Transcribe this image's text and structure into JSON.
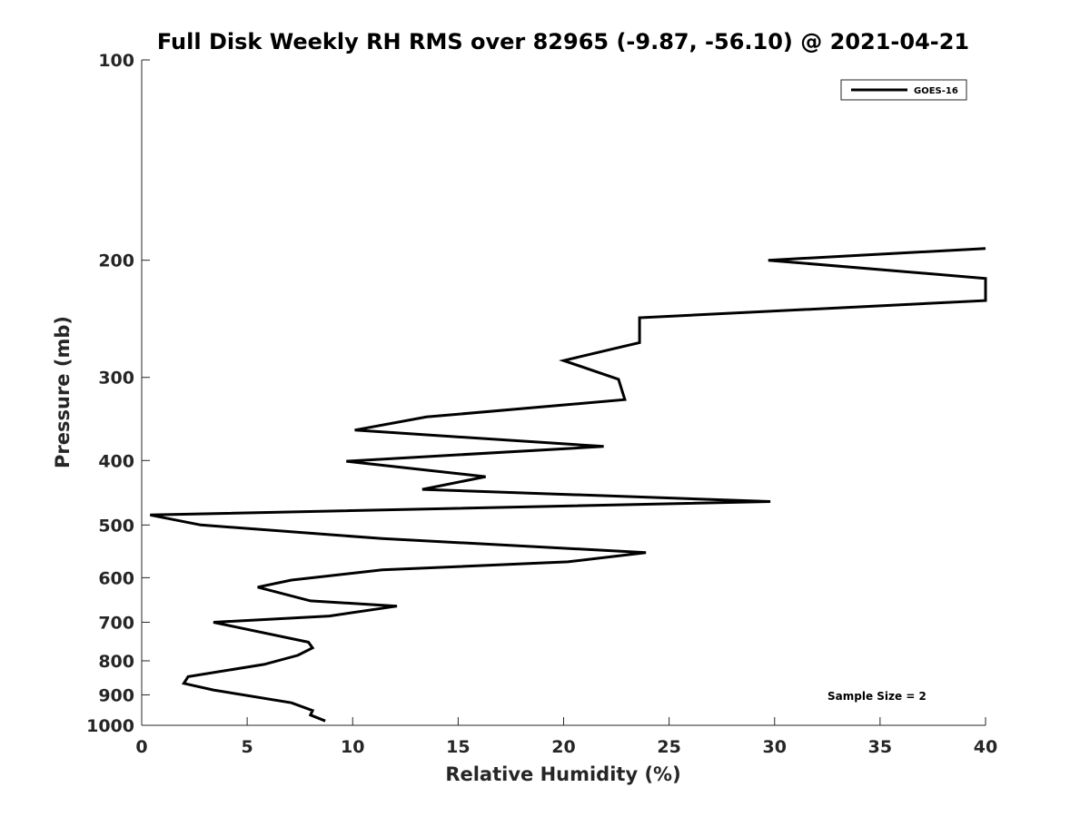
{
  "chart_data": {
    "type": "line",
    "title": "Full Disk Weekly RH RMS over 82965 (-9.87, -56.10) @ 2021-04-21",
    "xlabel": "Relative Humidity (%)",
    "ylabel": "Pressure (mb)",
    "xlim": [
      0,
      40
    ],
    "ylim": [
      100,
      1000
    ],
    "y_scale": "log",
    "y_reversed": true,
    "x_ticks": [
      0,
      5,
      10,
      15,
      20,
      25,
      30,
      35,
      40
    ],
    "y_ticks": [
      100,
      200,
      300,
      400,
      500,
      600,
      700,
      800,
      900,
      1000
    ],
    "grid": false,
    "legend_position": "top-right",
    "annotation": "Sample Size = 2",
    "line_color": "#000000",
    "series": [
      {
        "name": "GOES-16",
        "points": [
          {
            "x": 8.7,
            "p": 985
          },
          {
            "x": 8.0,
            "p": 965
          },
          {
            "x": 8.1,
            "p": 950
          },
          {
            "x": 7.1,
            "p": 925
          },
          {
            "x": 3.4,
            "p": 885
          },
          {
            "x": 2.0,
            "p": 865
          },
          {
            "x": 2.2,
            "p": 845
          },
          {
            "x": 5.8,
            "p": 810
          },
          {
            "x": 7.4,
            "p": 785
          },
          {
            "x": 8.1,
            "p": 765
          },
          {
            "x": 7.9,
            "p": 750
          },
          {
            "x": 3.4,
            "p": 700
          },
          {
            "x": 8.9,
            "p": 685
          },
          {
            "x": 12.1,
            "p": 662
          },
          {
            "x": 8.0,
            "p": 650
          },
          {
            "x": 5.5,
            "p": 620
          },
          {
            "x": 7.1,
            "p": 605
          },
          {
            "x": 11.4,
            "p": 584
          },
          {
            "x": 20.2,
            "p": 568
          },
          {
            "x": 23.9,
            "p": 550
          },
          {
            "x": 11.4,
            "p": 524
          },
          {
            "x": 2.8,
            "p": 500
          },
          {
            "x": 0.4,
            "p": 483
          },
          {
            "x": 29.8,
            "p": 461
          },
          {
            "x": 13.3,
            "p": 442
          },
          {
            "x": 16.3,
            "p": 423
          },
          {
            "x": 9.7,
            "p": 401
          },
          {
            "x": 21.9,
            "p": 381
          },
          {
            "x": 10.1,
            "p": 360
          },
          {
            "x": 13.5,
            "p": 344
          },
          {
            "x": 22.9,
            "p": 324
          },
          {
            "x": 22.6,
            "p": 302
          },
          {
            "x": 20.0,
            "p": 283
          },
          {
            "x": 23.6,
            "p": 266
          },
          {
            "x": 23.6,
            "p": 244
          },
          {
            "x": 40.0,
            "p": 230
          },
          {
            "x": 40.0,
            "p": 213
          },
          {
            "x": 29.7,
            "p": 200
          },
          {
            "x": 40.0,
            "p": 192
          }
        ]
      }
    ]
  }
}
